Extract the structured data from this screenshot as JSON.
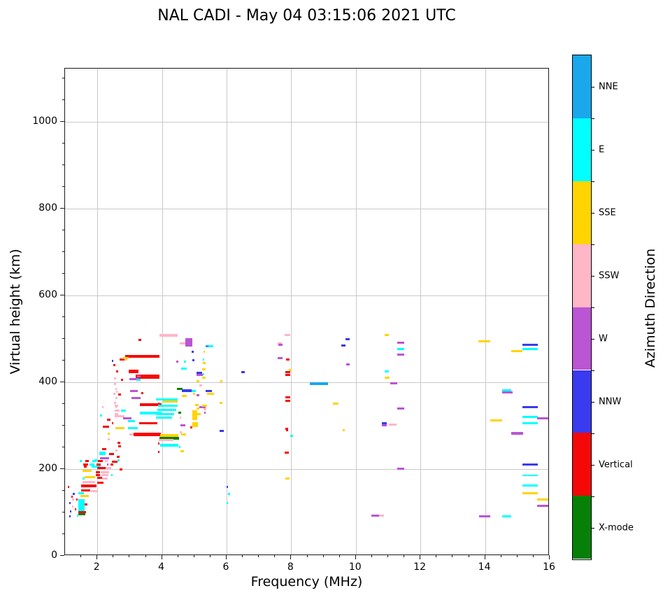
{
  "title": "NAL CADI - May 04 03:15:06 2021 UTC",
  "chart_data": {
    "type": "scatter",
    "title": "NAL CADI - May 04 03:15:06 2021 UTC",
    "xlabel": "Frequency (MHz)",
    "ylabel": "Virtual height (km)",
    "legend_title": "Azimuth Direction",
    "xlim": [
      1,
      16
    ],
    "ylim": [
      0,
      1122
    ],
    "x_ticks": [
      2,
      4,
      6,
      8,
      10,
      12,
      14,
      16
    ],
    "x_tick_labels": [
      "2",
      "4",
      "6",
      "8",
      "10",
      "12",
      "14",
      "16"
    ],
    "y_ticks": [
      0,
      200,
      400,
      600,
      800,
      1000
    ],
    "y_tick_labels": [
      "0",
      "200",
      "400",
      "600",
      "800",
      "1000"
    ],
    "x_minor_step": 0.5,
    "y_minor_step": 50,
    "grid": true,
    "grid_color": "#c9c9c9",
    "colorbar_labels_top_to_bottom": [
      "NNE",
      "E",
      "SSE",
      "SSW",
      "W",
      "NNW",
      "Vertical",
      "X-mode"
    ],
    "direction_colors": {
      "NNE": "#1aa7ec",
      "E": "#00ffff",
      "SSE": "#ffd400",
      "SSW": "#ffb6c7",
      "W": "#ba55d3",
      "NNW": "#3a3aef",
      "Vertical": "#f50808",
      "X-mode": "#068006"
    },
    "point_color_keys": {
      "N": "NNE",
      "E": "E",
      "S": "SSE",
      "P": "SSW",
      "W": "W",
      "B": "NNW",
      "R": "Vertical",
      "X": "X-mode"
    },
    "points_format": "[freq_MHz_left_edge, height_km, width_MHz, color_key, thickness_px(optional)]",
    "points": [
      [
        1.61,
        181,
        0.32,
        "S"
      ],
      [
        1.54,
        178,
        0.07,
        "E"
      ],
      [
        2.0,
        180,
        0.15,
        "R"
      ],
      [
        2.15,
        178,
        0.17,
        "P"
      ],
      [
        1.55,
        170,
        0.39,
        "P"
      ],
      [
        2.0,
        169,
        0.2,
        "R"
      ],
      [
        1.5,
        161,
        0.48,
        "R",
        4
      ],
      [
        1.09,
        159,
        0.05,
        "R"
      ],
      [
        1.5,
        150,
        0.28,
        "R"
      ],
      [
        1.8,
        149,
        0.2,
        "P"
      ],
      [
        1.41,
        144,
        0.17,
        "E"
      ],
      [
        1.24,
        142,
        0.07,
        "B"
      ],
      [
        1.48,
        138,
        0.26,
        "S"
      ],
      [
        1.2,
        137,
        0.04,
        "R"
      ],
      [
        1.22,
        129,
        0.07,
        "P"
      ],
      [
        1.41,
        127,
        0.2,
        "E",
        5
      ],
      [
        1.35,
        129,
        0.04,
        "R"
      ],
      [
        1.13,
        122,
        0.04,
        "B"
      ],
      [
        1.41,
        112,
        0.2,
        "E",
        13
      ],
      [
        1.61,
        119,
        0.09,
        "R"
      ],
      [
        1.22,
        114,
        0.04,
        "P"
      ],
      [
        1.3,
        108,
        0.04,
        "R"
      ],
      [
        1.15,
        103,
        0.05,
        "B"
      ],
      [
        1.41,
        100,
        0.24,
        "R"
      ],
      [
        1.41,
        96,
        0.22,
        "X"
      ],
      [
        1.13,
        91,
        0.05,
        "B"
      ],
      [
        1.37,
        92,
        0.05,
        "E"
      ],
      [
        2.32,
        281,
        0.06,
        "S"
      ],
      [
        2.32,
        268,
        0.06,
        "P"
      ],
      [
        2.62,
        261,
        0.1,
        "R"
      ],
      [
        2.64,
        253,
        0.1,
        "R"
      ],
      [
        2.15,
        246,
        0.13,
        "R"
      ],
      [
        2.06,
        236,
        0.2,
        "E",
        5
      ],
      [
        2.37,
        235,
        0.15,
        "R"
      ],
      [
        2.55,
        242,
        0.08,
        "P"
      ],
      [
        2.08,
        225,
        0.28,
        "W"
      ],
      [
        1.9,
        220,
        0.1,
        "E"
      ],
      [
        2.6,
        228,
        0.08,
        "R"
      ],
      [
        2.62,
        220,
        0.06,
        "E"
      ],
      [
        1.8,
        210,
        0.06,
        "B"
      ],
      [
        1.82,
        206,
        0.28,
        "E"
      ],
      [
        1.58,
        206,
        0.1,
        "R"
      ],
      [
        2.0,
        202,
        0.26,
        "R"
      ],
      [
        2.26,
        202,
        0.17,
        "P"
      ],
      [
        1.54,
        196,
        0.28,
        "S"
      ],
      [
        1.95,
        193,
        0.13,
        "R"
      ],
      [
        2.1,
        193,
        0.26,
        "P"
      ],
      [
        2.68,
        199,
        0.1,
        "R"
      ],
      [
        1.95,
        187,
        0.13,
        "R"
      ],
      [
        2.12,
        187,
        0.22,
        "P"
      ],
      [
        2.42,
        186,
        0.06,
        "E"
      ],
      [
        1.45,
        218,
        0.06,
        "E"
      ],
      [
        1.63,
        218,
        0.1,
        "R"
      ],
      [
        1.84,
        218,
        0.14,
        "E"
      ],
      [
        2.02,
        218,
        0.15,
        "R"
      ],
      [
        2.23,
        218,
        0.08,
        "P"
      ],
      [
        2.45,
        217,
        0.17,
        "R"
      ],
      [
        1.57,
        211,
        0.14,
        "R"
      ],
      [
        1.75,
        211,
        0.15,
        "E"
      ],
      [
        1.97,
        211,
        0.14,
        "R"
      ],
      [
        2.3,
        211,
        0.05,
        "W"
      ],
      [
        2.4,
        211,
        0.1,
        "R"
      ],
      [
        3.02,
        379,
        0.24,
        "W"
      ],
      [
        2.58,
        378,
        0.05,
        "P"
      ],
      [
        3.35,
        375,
        0.07,
        "R"
      ],
      [
        2.65,
        372,
        0.09,
        "R"
      ],
      [
        3.05,
        363,
        0.28,
        "W"
      ],
      [
        2.58,
        363,
        0.05,
        "P"
      ],
      [
        3.32,
        348,
        0.67,
        "R",
        4
      ],
      [
        2.54,
        346,
        0.11,
        "P"
      ],
      [
        2.15,
        343,
        0.05,
        "P"
      ],
      [
        2.54,
        335,
        0.15,
        "P"
      ],
      [
        2.73,
        335,
        0.15,
        "E"
      ],
      [
        3.32,
        329,
        0.67,
        "E",
        4
      ],
      [
        2.54,
        327,
        0.11,
        "P"
      ],
      [
        2.09,
        324,
        0.06,
        "E"
      ],
      [
        2.54,
        321,
        0.3,
        "P"
      ],
      [
        2.8,
        316,
        0.26,
        "W"
      ],
      [
        2.3,
        314,
        0.1,
        "R"
      ],
      [
        2.95,
        311,
        0.22,
        "E"
      ],
      [
        2.44,
        306,
        0.06,
        "R"
      ],
      [
        3.3,
        305,
        0.55,
        "R"
      ],
      [
        2.55,
        295,
        0.3,
        "S"
      ],
      [
        2.95,
        295,
        0.3,
        "E"
      ],
      [
        2.17,
        298,
        0.2,
        "R"
      ],
      [
        3.12,
        279,
        0.85,
        "R",
        5
      ],
      [
        3.0,
        279,
        0.12,
        "P"
      ],
      [
        2.52,
        395,
        0.06,
        "P"
      ],
      [
        2.55,
        385,
        0.06,
        "P"
      ],
      [
        2.5,
        374,
        0.06,
        "P"
      ],
      [
        2.55,
        363,
        0.06,
        "P"
      ],
      [
        2.52,
        353,
        0.06,
        "P"
      ],
      [
        2.55,
        342,
        0.06,
        "P"
      ],
      [
        2.73,
        405,
        0.06,
        "R"
      ],
      [
        3.28,
        498,
        0.08,
        "R"
      ],
      [
        3.92,
        508,
        0.57,
        "P",
        4
      ],
      [
        4.56,
        489,
        0.2,
        "P"
      ],
      [
        4.73,
        492,
        0.2,
        "W",
        12
      ],
      [
        4.92,
        470,
        0.06,
        "B"
      ],
      [
        2.87,
        459,
        1.06,
        "R",
        4
      ],
      [
        2.68,
        452,
        0.18,
        "R"
      ],
      [
        2.85,
        452,
        0.08,
        "P"
      ],
      [
        2.8,
        456,
        0.17,
        "S"
      ],
      [
        2.45,
        449,
        0.05,
        "B"
      ],
      [
        2.49,
        440,
        0.07,
        "R"
      ],
      [
        2.58,
        424,
        0.07,
        "R"
      ],
      [
        2.97,
        425,
        0.3,
        "R",
        5
      ],
      [
        3.19,
        412,
        0.73,
        "R",
        6
      ],
      [
        3.23,
        413,
        0.1,
        "W"
      ],
      [
        2.52,
        409,
        0.05,
        "P"
      ],
      [
        2.99,
        407,
        0.28,
        "W"
      ],
      [
        3.2,
        405,
        0.13,
        "E"
      ],
      [
        4.94,
        451,
        0.07,
        "B"
      ],
      [
        5.26,
        452,
        0.05,
        "E"
      ],
      [
        5.27,
        444,
        0.08,
        "S"
      ],
      [
        4.6,
        432,
        0.16,
        "E"
      ],
      [
        5.25,
        430,
        0.1,
        "S"
      ],
      [
        5.26,
        419,
        0.05,
        "E"
      ],
      [
        5.25,
        411,
        0.1,
        "S"
      ],
      [
        4.44,
        448,
        0.06,
        "W"
      ],
      [
        4.68,
        447,
        0.06,
        "E"
      ],
      [
        6.45,
        423,
        0.12,
        "B"
      ],
      [
        4.46,
        384,
        0.17,
        "X"
      ],
      [
        4.62,
        380,
        0.3,
        "B",
        4
      ],
      [
        4.92,
        379,
        0.13,
        "E"
      ],
      [
        5.35,
        380,
        0.2,
        "B"
      ],
      [
        5.4,
        373,
        0.2,
        "S"
      ],
      [
        4.97,
        374,
        0.06,
        "S"
      ],
      [
        4.62,
        368,
        0.15,
        "S"
      ],
      [
        3.81,
        360,
        0.67,
        "E"
      ],
      [
        4.02,
        355,
        0.46,
        "S"
      ],
      [
        3.88,
        346,
        0.61,
        "E"
      ],
      [
        3.88,
        351,
        0.05,
        "R"
      ],
      [
        3.85,
        336,
        0.59,
        "E"
      ],
      [
        3.82,
        327,
        0.55,
        "E"
      ],
      [
        4.5,
        330,
        0.1,
        "X"
      ],
      [
        3.82,
        318,
        0.5,
        "E"
      ],
      [
        4.54,
        318,
        0.05,
        "P"
      ],
      [
        5.03,
        347,
        0.1,
        "S"
      ],
      [
        4.95,
        324,
        0.14,
        "S",
        14
      ],
      [
        5.15,
        342,
        0.2,
        "W"
      ],
      [
        5.33,
        346,
        0.05,
        "P"
      ],
      [
        4.57,
        301,
        0.16,
        "W"
      ],
      [
        4.95,
        303,
        0.17,
        "S",
        7
      ],
      [
        4.55,
        285,
        0.06,
        "P"
      ],
      [
        4.6,
        280,
        0.15,
        "S"
      ],
      [
        3.95,
        277,
        0.55,
        "S",
        5
      ],
      [
        3.92,
        271,
        0.61,
        "X",
        4
      ],
      [
        3.9,
        266,
        0.45,
        "P"
      ],
      [
        3.95,
        254,
        0.55,
        "E",
        4
      ],
      [
        4.57,
        241,
        0.12,
        "S"
      ],
      [
        3.88,
        259,
        0.05,
        "R"
      ],
      [
        3.88,
        240,
        0.05,
        "R"
      ],
      [
        4.52,
        250,
        0.05,
        "E"
      ],
      [
        5.78,
        288,
        0.14,
        "B"
      ],
      [
        4.87,
        296,
        0.08,
        "R"
      ],
      [
        5.36,
        483,
        0.07,
        "N"
      ],
      [
        5.43,
        483,
        0.15,
        "E"
      ],
      [
        5.28,
        470,
        0.05,
        "S"
      ],
      [
        5.08,
        421,
        0.16,
        "B"
      ],
      [
        5.08,
        416,
        0.19,
        "W"
      ],
      [
        5.8,
        402,
        0.07,
        "S"
      ],
      [
        5.08,
        403,
        0.07,
        "S"
      ],
      [
        5.15,
        392,
        0.1,
        "P"
      ],
      [
        5.08,
        370,
        0.08,
        "W"
      ],
      [
        5.78,
        352,
        0.09,
        "S"
      ],
      [
        5.25,
        345,
        0.14,
        "S"
      ],
      [
        5.28,
        338,
        0.1,
        "P"
      ],
      [
        5.08,
        339,
        0.08,
        "S"
      ],
      [
        5.3,
        329,
        0.05,
        "W"
      ],
      [
        5.08,
        327,
        0.12,
        "S"
      ],
      [
        6.0,
        159,
        0.05,
        "B"
      ],
      [
        6.05,
        143,
        0.05,
        "E"
      ],
      [
        6.0,
        122,
        0.05,
        "E"
      ],
      [
        7.8,
        508,
        0.17,
        "P"
      ],
      [
        7.58,
        490,
        0.14,
        "P"
      ],
      [
        7.6,
        486,
        0.14,
        "W"
      ],
      [
        7.58,
        456,
        0.16,
        "W"
      ],
      [
        7.83,
        452,
        0.12,
        "R"
      ],
      [
        7.92,
        428,
        0.09,
        "S"
      ],
      [
        7.81,
        423,
        0.16,
        "R"
      ],
      [
        7.81,
        416,
        0.16,
        "R"
      ],
      [
        7.81,
        365,
        0.16,
        "R"
      ],
      [
        7.81,
        357,
        0.16,
        "R"
      ],
      [
        7.81,
        293,
        0.1,
        "R"
      ],
      [
        7.84,
        289,
        0.06,
        "R"
      ],
      [
        7.96,
        277,
        0.1,
        "E"
      ],
      [
        7.8,
        237,
        0.13,
        "R"
      ],
      [
        7.81,
        178,
        0.14,
        "S"
      ],
      [
        8.58,
        396,
        0.56,
        "N",
        4
      ],
      [
        9.67,
        499,
        0.13,
        "B"
      ],
      [
        9.55,
        484,
        0.13,
        "B"
      ],
      [
        9.3,
        350,
        0.17,
        "S"
      ],
      [
        9.6,
        289,
        0.05,
        "S"
      ],
      [
        9.7,
        441,
        0.1,
        "W"
      ],
      [
        10.47,
        93,
        0.33,
        "W"
      ],
      [
        10.72,
        93,
        0.15,
        "P"
      ],
      [
        10.89,
        508,
        0.14,
        "S"
      ],
      [
        11.28,
        491,
        0.22,
        "W"
      ],
      [
        11.28,
        477,
        0.22,
        "E"
      ],
      [
        11.28,
        463,
        0.22,
        "W"
      ],
      [
        10.89,
        425,
        0.14,
        "E"
      ],
      [
        10.89,
        410,
        0.15,
        "S"
      ],
      [
        11.07,
        398,
        0.22,
        "W"
      ],
      [
        11.28,
        339,
        0.22,
        "W"
      ],
      [
        10.8,
        305,
        0.15,
        "B"
      ],
      [
        10.8,
        301,
        0.15,
        "W"
      ],
      [
        11.03,
        302,
        0.24,
        "P"
      ],
      [
        11.28,
        201,
        0.22,
        "W"
      ],
      [
        13.8,
        494,
        0.35,
        "S"
      ],
      [
        15.16,
        486,
        0.48,
        "B"
      ],
      [
        15.16,
        477,
        0.48,
        "E"
      ],
      [
        14.81,
        472,
        0.35,
        "S"
      ],
      [
        14.52,
        382,
        0.3,
        "E"
      ],
      [
        14.52,
        377,
        0.33,
        "W"
      ],
      [
        15.16,
        342,
        0.48,
        "B"
      ],
      [
        14.16,
        312,
        0.37,
        "S"
      ],
      [
        15.16,
        320,
        0.48,
        "E"
      ],
      [
        15.61,
        316,
        0.5,
        "W"
      ],
      [
        15.16,
        305,
        0.48,
        "E"
      ],
      [
        14.81,
        282,
        0.37,
        "W",
        4
      ],
      [
        15.16,
        210,
        0.48,
        "B"
      ],
      [
        15.16,
        186,
        0.48,
        "E",
        2
      ],
      [
        15.16,
        162,
        0.48,
        "E"
      ],
      [
        15.16,
        145,
        0.48,
        "S"
      ],
      [
        15.61,
        130,
        0.4,
        "S"
      ],
      [
        15.61,
        116,
        0.4,
        "W"
      ],
      [
        13.81,
        91,
        0.35,
        "W"
      ],
      [
        14.52,
        91,
        0.3,
        "E"
      ]
    ]
  }
}
